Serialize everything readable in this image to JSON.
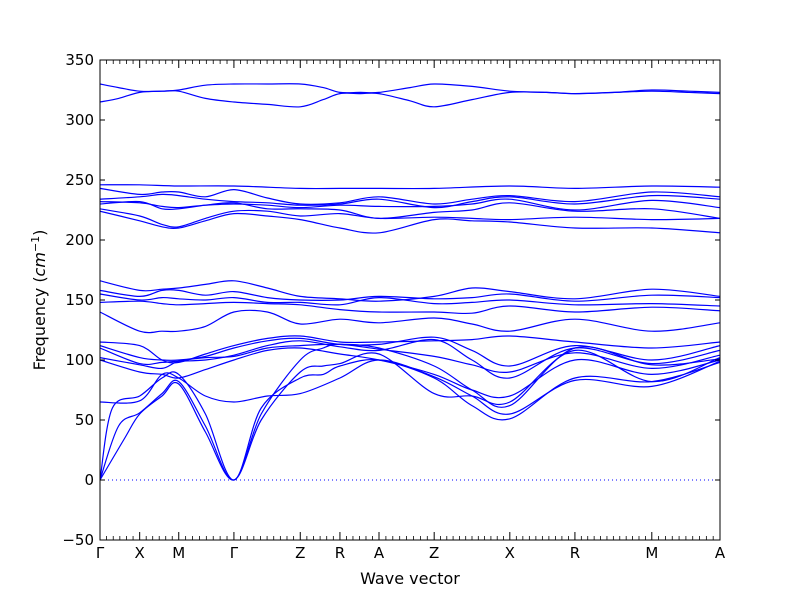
{
  "chart_data": {
    "type": "line",
    "title": "",
    "xlabel": "Wave vector",
    "ylabel": "Frequency",
    "ylabel_unit": "cm",
    "ylabel_unit_exp": "−1",
    "ylim": [
      -50,
      350
    ],
    "yticks": [
      -50,
      0,
      50,
      100,
      150,
      200,
      250,
      300,
      350
    ],
    "grid": false,
    "line_color": "#0000ff",
    "zero_line_color": "#0000ff",
    "xlim": [
      0,
      1
    ],
    "high_symmetry_points": [
      {
        "label": "Γ",
        "x": 0.0
      },
      {
        "label": "X",
        "x": 0.064
      },
      {
        "label": "M",
        "x": 0.127
      },
      {
        "label": "Γ",
        "x": 0.216
      },
      {
        "label": "Z",
        "x": 0.323
      },
      {
        "label": "R",
        "x": 0.387
      },
      {
        "label": "A",
        "x": 0.45
      },
      {
        "label": "Z",
        "x": 0.539
      },
      {
        "label": "X",
        "x": 0.661
      },
      {
        "label": "R",
        "x": 0.766
      },
      {
        "label": "M",
        "x": 0.89
      },
      {
        "label": "A",
        "x": 1.0
      }
    ],
    "series": [
      {
        "x": [
          0,
          0.03,
          0.064,
          0.1,
          0.127,
          0.17,
          0.216,
          0.27,
          0.323,
          0.36,
          0.387,
          0.42,
          0.45,
          0.5,
          0.539,
          0.6,
          0.661,
          0.72,
          0.766,
          0.83,
          0.89,
          0.95,
          1.0
        ],
        "y": [
          330,
          327,
          324,
          324,
          325,
          329,
          330,
          330,
          330,
          327,
          323,
          323,
          323,
          327,
          330,
          328,
          324,
          323,
          322,
          323,
          325,
          324,
          323
        ]
      },
      {
        "x": [
          0,
          0.03,
          0.064,
          0.1,
          0.127,
          0.17,
          0.216,
          0.27,
          0.323,
          0.36,
          0.387,
          0.42,
          0.45,
          0.5,
          0.539,
          0.6,
          0.661,
          0.72,
          0.766,
          0.83,
          0.89,
          0.95,
          1.0
        ],
        "y": [
          315,
          318,
          323,
          324,
          324,
          318,
          315,
          313,
          311,
          317,
          322,
          322,
          322,
          316,
          311,
          317,
          323,
          323,
          322,
          323,
          324,
          323,
          322
        ]
      },
      {
        "x": [
          0,
          0.064,
          0.127,
          0.216,
          0.323,
          0.387,
          0.45,
          0.539,
          0.661,
          0.766,
          0.89,
          1.0
        ],
        "y": [
          246,
          246,
          245,
          245,
          243,
          243,
          243,
          243,
          245,
          243,
          245,
          244
        ]
      },
      {
        "x": [
          0,
          0.064,
          0.1,
          0.127,
          0.17,
          0.216,
          0.27,
          0.323,
          0.387,
          0.45,
          0.539,
          0.6,
          0.661,
          0.766,
          0.89,
          1.0
        ],
        "y": [
          243,
          238,
          240,
          240,
          236,
          242,
          235,
          230,
          231,
          236,
          230,
          234,
          237,
          232,
          240,
          236
        ]
      },
      {
        "x": [
          0,
          0.064,
          0.1,
          0.127,
          0.17,
          0.216,
          0.27,
          0.323,
          0.387,
          0.45,
          0.539,
          0.6,
          0.661,
          0.766,
          0.89,
          1.0
        ],
        "y": [
          234,
          236,
          238,
          237,
          234,
          232,
          231,
          229,
          230,
          234,
          227,
          232,
          236,
          230,
          237,
          234
        ]
      },
      {
        "x": [
          0,
          0.064,
          0.1,
          0.127,
          0.17,
          0.216,
          0.27,
          0.323,
          0.387,
          0.45,
          0.539,
          0.6,
          0.661,
          0.766,
          0.89,
          1.0
        ],
        "y": [
          232,
          231,
          228,
          227,
          229,
          230,
          229,
          227,
          229,
          228,
          228,
          230,
          234,
          225,
          233,
          227
        ]
      },
      {
        "x": [
          0,
          0.064,
          0.1,
          0.127,
          0.17,
          0.216,
          0.27,
          0.323,
          0.387,
          0.45,
          0.539,
          0.6,
          0.661,
          0.766,
          0.89,
          1.0
        ],
        "y": [
          230,
          232,
          226,
          226,
          229,
          231,
          226,
          226,
          225,
          218,
          223,
          225,
          231,
          224,
          226,
          218
        ]
      },
      {
        "x": [
          0,
          0.064,
          0.1,
          0.127,
          0.17,
          0.216,
          0.27,
          0.323,
          0.387,
          0.45,
          0.539,
          0.6,
          0.661,
          0.766,
          0.89,
          1.0
        ],
        "y": [
          226,
          220,
          213,
          211,
          218,
          224,
          224,
          220,
          222,
          218,
          219,
          218,
          217,
          219,
          217,
          218
        ]
      },
      {
        "x": [
          0,
          0.064,
          0.1,
          0.127,
          0.17,
          0.216,
          0.27,
          0.323,
          0.387,
          0.45,
          0.539,
          0.6,
          0.661,
          0.766,
          0.89,
          1.0
        ],
        "y": [
          224,
          216,
          211,
          210,
          216,
          222,
          220,
          217,
          210,
          206,
          217,
          216,
          215,
          210,
          210,
          206
        ]
      },
      {
        "x": [
          0,
          0.064,
          0.1,
          0.127,
          0.17,
          0.216,
          0.27,
          0.323,
          0.387,
          0.45,
          0.539,
          0.6,
          0.661,
          0.766,
          0.89,
          1.0
        ],
        "y": [
          166,
          158,
          159,
          160,
          163,
          166,
          160,
          153,
          151,
          149,
          153,
          160,
          157,
          151,
          159,
          153
        ]
      },
      {
        "x": [
          0,
          0.064,
          0.1,
          0.127,
          0.17,
          0.216,
          0.27,
          0.323,
          0.387,
          0.45,
          0.539,
          0.6,
          0.661,
          0.766,
          0.89,
          1.0
        ],
        "y": [
          158,
          153,
          158,
          158,
          154,
          157,
          152,
          150,
          150,
          153,
          151,
          152,
          155,
          149,
          154,
          152
        ]
      },
      {
        "x": [
          0,
          0.064,
          0.1,
          0.127,
          0.17,
          0.216,
          0.27,
          0.323,
          0.387,
          0.45,
          0.539,
          0.6,
          0.661,
          0.766,
          0.89,
          1.0
        ],
        "y": [
          155,
          150,
          152,
          151,
          150,
          152,
          148,
          148,
          146,
          152,
          147,
          148,
          150,
          146,
          147,
          145
        ]
      },
      {
        "x": [
          0,
          0.064,
          0.1,
          0.127,
          0.17,
          0.216,
          0.27,
          0.323,
          0.387,
          0.45,
          0.539,
          0.6,
          0.661,
          0.766,
          0.89,
          1.0
        ],
        "y": [
          148,
          149,
          147,
          146,
          147,
          148,
          147,
          146,
          142,
          140,
          140,
          139,
          145,
          140,
          144,
          141
        ]
      },
      {
        "x": [
          0,
          0.064,
          0.1,
          0.127,
          0.17,
          0.216,
          0.27,
          0.323,
          0.387,
          0.45,
          0.539,
          0.6,
          0.661,
          0.766,
          0.89,
          1.0
        ],
        "y": [
          140,
          124,
          124,
          124,
          128,
          140,
          140,
          130,
          134,
          131,
          135,
          130,
          124,
          134,
          124,
          131
        ]
      },
      {
        "x": [
          0,
          0.064,
          0.1,
          0.127,
          0.17,
          0.216,
          0.27,
          0.323,
          0.387,
          0.45,
          0.539,
          0.6,
          0.661,
          0.766,
          0.89,
          1.0
        ],
        "y": [
          115,
          112,
          100,
          98,
          105,
          112,
          118,
          120,
          115,
          115,
          116,
          117,
          120,
          115,
          110,
          115
        ]
      },
      {
        "x": [
          0,
          0.064,
          0.1,
          0.127,
          0.17,
          0.216,
          0.27,
          0.323,
          0.387,
          0.45,
          0.539,
          0.6,
          0.661,
          0.766,
          0.89,
          1.0
        ],
        "y": [
          112,
          102,
          100,
          100,
          103,
          110,
          116,
          118,
          113,
          113,
          119,
          108,
          95,
          112,
          100,
          112
        ]
      },
      {
        "x": [
          0,
          0.064,
          0.1,
          0.127,
          0.17,
          0.216,
          0.27,
          0.323,
          0.387,
          0.45,
          0.539,
          0.6,
          0.661,
          0.766,
          0.89,
          1.0
        ],
        "y": [
          110,
          97,
          98,
          99,
          100,
          104,
          112,
          116,
          111,
          108,
          117,
          100,
          85,
          110,
          97,
          108
        ]
      },
      {
        "x": [
          0,
          0.064,
          0.1,
          0.127,
          0.17,
          0.216,
          0.27,
          0.323,
          0.387,
          0.45,
          0.539,
          0.6,
          0.661,
          0.766,
          0.89,
          1.0
        ],
        "y": [
          102,
          96,
          93,
          99,
          102,
          103,
          110,
          112,
          113,
          109,
          103,
          96,
          90,
          106,
          93,
          104
        ]
      },
      {
        "x": [
          0,
          0.064,
          0.1,
          0.127,
          0.17,
          0.216,
          0.27,
          0.323,
          0.387,
          0.45,
          0.539,
          0.6,
          0.661,
          0.766,
          0.89,
          1.0
        ],
        "y": [
          100,
          90,
          88,
          85,
          92,
          100,
          108,
          110,
          105,
          100,
          88,
          75,
          70,
          100,
          88,
          100
        ]
      },
      {
        "x": [
          0,
          0.064,
          0.1,
          0.127,
          0.17,
          0.216,
          0.27,
          0.323,
          0.387,
          0.45,
          0.539,
          0.6,
          0.661,
          0.766,
          0.89,
          1.0
        ],
        "y": [
          65,
          66,
          88,
          85,
          70,
          65,
          70,
          72,
          85,
          100,
          86,
          70,
          55,
          83,
          78,
          99
        ]
      },
      {
        "x": [
          0,
          0.02,
          0.064,
          0.1,
          0.127,
          0.17,
          0.216,
          0.26,
          0.323,
          0.36,
          0.387,
          0.45,
          0.539,
          0.6,
          0.661,
          0.766,
          0.89,
          1.0
        ],
        "y": [
          0,
          60,
          70,
          85,
          88,
          55,
          0,
          60,
          85,
          88,
          95,
          100,
          85,
          62,
          51,
          85,
          82,
          98
        ]
      },
      {
        "x": [
          0,
          0.03,
          0.064,
          0.1,
          0.127,
          0.17,
          0.216,
          0.26,
          0.323,
          0.36,
          0.387,
          0.45,
          0.539,
          0.6,
          0.661,
          0.766,
          0.89,
          1.0
        ],
        "y": [
          0,
          45,
          56,
          72,
          82,
          45,
          0,
          55,
          100,
          110,
          113,
          110,
          95,
          75,
          62,
          110,
          96,
          101
        ]
      },
      {
        "x": [
          0,
          0.04,
          0.064,
          0.1,
          0.127,
          0.17,
          0.216,
          0.26,
          0.323,
          0.36,
          0.387,
          0.45,
          0.539,
          0.6,
          0.661,
          0.766,
          0.89,
          1.0
        ],
        "y": [
          0,
          35,
          55,
          70,
          80,
          40,
          0,
          50,
          90,
          95,
          97,
          105,
          72,
          70,
          65,
          108,
          82,
          102
        ]
      }
    ]
  }
}
